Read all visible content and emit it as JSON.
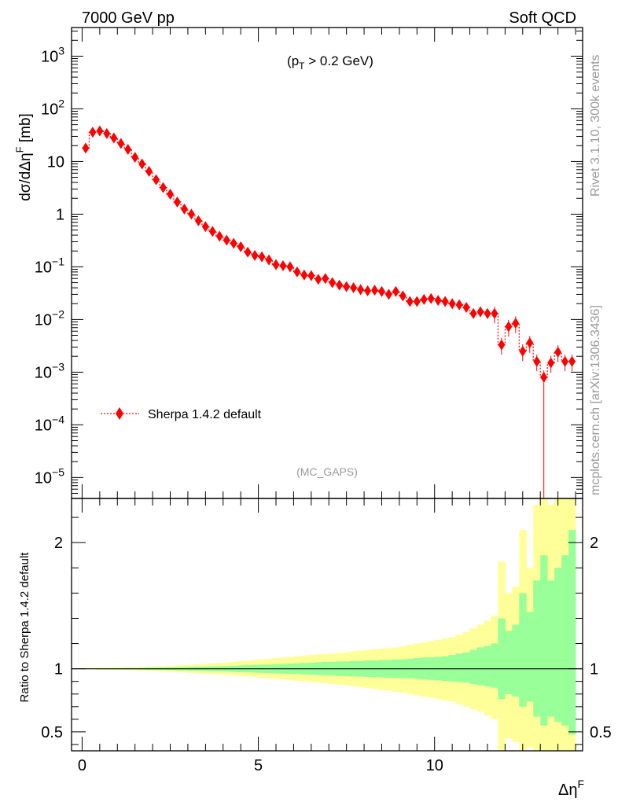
{
  "header": {
    "left_label": "7000 GeV pp",
    "right_label": "Soft QCD"
  },
  "side_text": {
    "rivet_label": "Rivet 3.1.10,  300k events",
    "source_label": "mcplots.cern.ch [arXiv:1306.3436]"
  },
  "annotations": {
    "pt_cut": "(p_T > 0.2 GeV)",
    "analysis_tag": "(MC_GAPS)"
  },
  "legend": {
    "placement": "lower-left",
    "entry": "Sherpa 1.4.2 default"
  },
  "colors": {
    "series": "#ff0000",
    "band_inner": "#99ff99",
    "band_outer": "#ffff99",
    "axis": "#000000",
    "tag_text": "#999999"
  },
  "chart_data": [
    {
      "type": "scatter",
      "xlabel": "Δη^F",
      "ylabel": "dσ/dΔη^F [mb]",
      "yscale": "log",
      "ylim": [
        4e-06,
        3500
      ],
      "xlim": [
        -0.3,
        14.2
      ],
      "y_ticks": [
        {
          "value": 1e-05,
          "label": "10^-5"
        },
        {
          "value": 0.0001,
          "label": "10^-4"
        },
        {
          "value": 0.001,
          "label": "10^-3"
        },
        {
          "value": 0.01,
          "label": "10^-2"
        },
        {
          "value": 0.1,
          "label": "10^-1"
        },
        {
          "value": 1,
          "label": "1"
        },
        {
          "value": 10,
          "label": "10"
        },
        {
          "value": 100,
          "label": "10^2"
        },
        {
          "value": 1000,
          "label": "10^3"
        }
      ],
      "series": [
        {
          "name": "Sherpa 1.4.2 default",
          "x": [
            0.1,
            0.3,
            0.5,
            0.7,
            0.9,
            1.1,
            1.3,
            1.5,
            1.7,
            1.9,
            2.1,
            2.3,
            2.5,
            2.7,
            2.9,
            3.1,
            3.3,
            3.5,
            3.7,
            3.9,
            4.1,
            4.3,
            4.5,
            4.7,
            4.9,
            5.1,
            5.3,
            5.5,
            5.7,
            5.9,
            6.1,
            6.3,
            6.5,
            6.7,
            6.9,
            7.1,
            7.3,
            7.5,
            7.7,
            7.9,
            8.1,
            8.3,
            8.5,
            8.7,
            8.9,
            9.1,
            9.3,
            9.5,
            9.7,
            9.9,
            10.1,
            10.3,
            10.5,
            10.7,
            10.9,
            11.1,
            11.3,
            11.5,
            11.7,
            11.9,
            12.1,
            12.3,
            12.5,
            12.7,
            12.9,
            13.1,
            13.3,
            13.5,
            13.7,
            13.9
          ],
          "y": [
            18,
            36,
            38,
            34,
            28,
            22,
            17,
            12,
            9,
            6.5,
            4.5,
            3.2,
            2.4,
            1.7,
            1.25,
            1.0,
            0.75,
            0.58,
            0.47,
            0.38,
            0.32,
            0.28,
            0.24,
            0.19,
            0.165,
            0.155,
            0.135,
            0.11,
            0.105,
            0.1,
            0.08,
            0.07,
            0.068,
            0.058,
            0.06,
            0.05,
            0.045,
            0.042,
            0.04,
            0.037,
            0.035,
            0.036,
            0.034,
            0.03,
            0.034,
            0.028,
            0.022,
            0.022,
            0.024,
            0.025,
            0.023,
            0.022,
            0.02,
            0.019,
            0.017,
            0.013,
            0.014,
            0.013,
            0.013,
            0.0033,
            0.0073,
            0.0085,
            0.0025,
            0.0036,
            0.0016,
            0.0008,
            0.0015,
            0.0024,
            0.0016,
            0.0016
          ]
        }
      ]
    },
    {
      "type": "area",
      "ylabel": "Ratio to Sherpa 1.4.2 default",
      "ylim": [
        0.35,
        2.35
      ],
      "xlim": [
        -0.3,
        14.2
      ],
      "x_ticks": [
        0,
        5,
        10
      ],
      "y_ticks": [
        0.5,
        1,
        2
      ],
      "bin_edges": [
        0.0,
        0.2,
        0.4,
        0.6,
        0.8,
        1.0,
        1.2,
        1.4,
        1.6,
        1.8,
        2.0,
        2.2,
        2.4,
        2.6,
        2.8,
        3.0,
        3.2,
        3.4,
        3.6,
        3.8,
        4.0,
        4.2,
        4.4,
        4.6,
        4.8,
        5.0,
        5.2,
        5.4,
        5.6,
        5.8,
        6.0,
        6.2,
        6.4,
        6.6,
        6.8,
        7.0,
        7.2,
        7.4,
        7.6,
        7.8,
        8.0,
        8.2,
        8.4,
        8.6,
        8.8,
        9.0,
        9.2,
        9.4,
        9.6,
        9.8,
        10.0,
        10.2,
        10.4,
        10.6,
        10.8,
        11.0,
        11.2,
        11.4,
        11.6,
        11.8,
        12.0,
        12.2,
        12.4,
        12.6,
        12.8,
        13.0,
        13.2,
        13.4,
        13.6,
        13.8,
        14.0
      ],
      "bands": [
        {
          "name": "inner",
          "upper": [
            1.003,
            1.003,
            1.004,
            1.004,
            1.005,
            1.005,
            1.006,
            1.006,
            1.007,
            1.008,
            1.009,
            1.01,
            1.011,
            1.012,
            1.013,
            1.015,
            1.016,
            1.017,
            1.019,
            1.02,
            1.022,
            1.024,
            1.026,
            1.028,
            1.03,
            1.032,
            1.034,
            1.036,
            1.038,
            1.04,
            1.043,
            1.046,
            1.049,
            1.052,
            1.055,
            1.055,
            1.058,
            1.058,
            1.062,
            1.062,
            1.066,
            1.066,
            1.07,
            1.07,
            1.075,
            1.075,
            1.08,
            1.085,
            1.09,
            1.09,
            1.095,
            1.1,
            1.11,
            1.12,
            1.13,
            1.15,
            1.17,
            1.18,
            1.2,
            1.4,
            1.3,
            1.35,
            1.6,
            1.45,
            1.7,
            1.9,
            1.7,
            1.8,
            1.9,
            2.1
          ],
          "lower": [
            0.997,
            0.997,
            0.996,
            0.996,
            0.995,
            0.995,
            0.994,
            0.994,
            0.993,
            0.992,
            0.991,
            0.99,
            0.989,
            0.988,
            0.987,
            0.985,
            0.984,
            0.983,
            0.981,
            0.98,
            0.978,
            0.976,
            0.974,
            0.972,
            0.97,
            0.968,
            0.966,
            0.964,
            0.962,
            0.96,
            0.958,
            0.955,
            0.953,
            0.95,
            0.948,
            0.946,
            0.944,
            0.942,
            0.94,
            0.938,
            0.936,
            0.934,
            0.932,
            0.93,
            0.928,
            0.926,
            0.924,
            0.92,
            0.916,
            0.912,
            0.908,
            0.904,
            0.9,
            0.895,
            0.89,
            0.88,
            0.87,
            0.86,
            0.85,
            0.76,
            0.8,
            0.78,
            0.7,
            0.74,
            0.62,
            0.55,
            0.62,
            0.58,
            0.55,
            0.48
          ]
        },
        {
          "name": "outer",
          "upper": [
            1.006,
            1.006,
            1.007,
            1.008,
            1.009,
            1.01,
            1.011,
            1.012,
            1.014,
            1.016,
            1.018,
            1.02,
            1.023,
            1.026,
            1.029,
            1.033,
            1.036,
            1.04,
            1.043,
            1.046,
            1.05,
            1.055,
            1.06,
            1.065,
            1.07,
            1.075,
            1.08,
            1.085,
            1.09,
            1.095,
            1.1,
            1.105,
            1.11,
            1.115,
            1.12,
            1.12,
            1.125,
            1.13,
            1.14,
            1.145,
            1.15,
            1.155,
            1.16,
            1.165,
            1.17,
            1.18,
            1.19,
            1.2,
            1.21,
            1.22,
            1.23,
            1.24,
            1.25,
            1.27,
            1.29,
            1.32,
            1.35,
            1.38,
            1.42,
            1.85,
            1.6,
            1.65,
            2.1,
            1.8,
            2.3,
            2.5,
            2.3,
            2.35,
            2.5,
            2.5
          ],
          "lower": [
            0.994,
            0.994,
            0.993,
            0.992,
            0.991,
            0.99,
            0.989,
            0.988,
            0.986,
            0.984,
            0.982,
            0.98,
            0.977,
            0.974,
            0.971,
            0.968,
            0.965,
            0.962,
            0.959,
            0.956,
            0.952,
            0.948,
            0.944,
            0.94,
            0.935,
            0.93,
            0.925,
            0.92,
            0.915,
            0.91,
            0.905,
            0.9,
            0.895,
            0.89,
            0.885,
            0.88,
            0.875,
            0.87,
            0.862,
            0.855,
            0.848,
            0.84,
            0.832,
            0.825,
            0.818,
            0.81,
            0.8,
            0.79,
            0.78,
            0.77,
            0.76,
            0.75,
            0.74,
            0.72,
            0.7,
            0.68,
            0.66,
            0.63,
            0.6,
            0.3,
            0.45,
            0.42,
            0.3,
            0.38,
            0.3,
            0.3,
            0.3,
            0.3,
            0.3,
            0.3
          ]
        }
      ],
      "reference_line": 1
    }
  ]
}
